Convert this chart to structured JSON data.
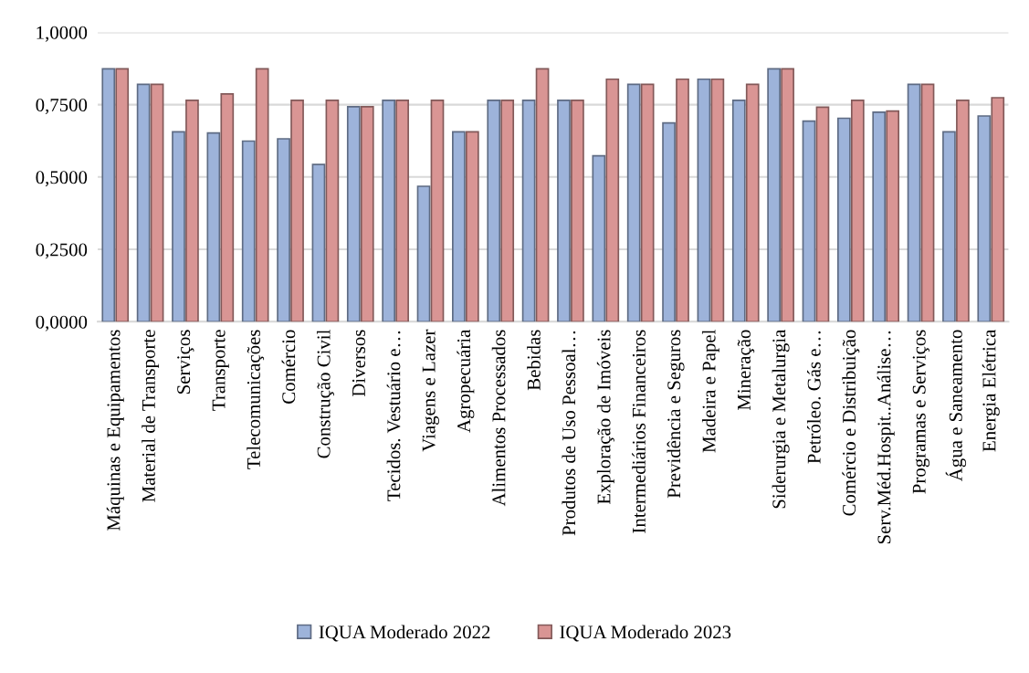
{
  "chart_data": {
    "type": "bar",
    "categories": [
      "Máquinas e Equipamentos",
      "Material de Transporte",
      "Serviços",
      "Transporte",
      "Telecomunicações",
      "Comércio",
      "Construção Civil",
      "Diversos",
      "Tecidos. Vestuário e…",
      "Viagens e Lazer",
      "Agropecuária",
      "Alimentos Processados",
      "Bebidas",
      "Produtos de Uso Pessoal…",
      "Exploração de Imóveis",
      "Intermediários Financeiros",
      "Previdência e Seguros",
      "Madeira e Papel",
      "Mineração",
      "Siderurgia e Metalurgia",
      "Petróleo. Gás e…",
      "Comércio e Distribuição",
      "Serv.Méd.Hospit..Análise…",
      "Programas e Serviços",
      "Água e Saneamento",
      "Energia Elétrica"
    ],
    "series": [
      {
        "name": "IQUA Moderado 2022",
        "color": "#9db3da",
        "values": [
          0.874,
          0.82,
          0.656,
          0.652,
          0.624,
          0.632,
          0.543,
          0.743,
          0.765,
          0.468,
          0.656,
          0.765,
          0.765,
          0.765,
          0.573,
          0.82,
          0.687,
          0.838,
          0.765,
          0.874,
          0.693,
          0.703,
          0.724,
          0.82,
          0.656,
          0.711
        ]
      },
      {
        "name": "IQUA Moderado 2023",
        "color": "#d99594",
        "values": [
          0.874,
          0.82,
          0.765,
          0.787,
          0.874,
          0.765,
          0.765,
          0.743,
          0.765,
          0.765,
          0.656,
          0.765,
          0.874,
          0.765,
          0.838,
          0.82,
          0.838,
          0.838,
          0.82,
          0.874,
          0.741,
          0.765,
          0.728,
          0.82,
          0.765,
          0.774
        ]
      }
    ],
    "ylim": [
      0,
      1
    ],
    "yticks": [
      {
        "value": 0,
        "label": "0,0000"
      },
      {
        "value": 0.25,
        "label": "0,2500"
      },
      {
        "value": 0.5,
        "label": "0,5000"
      },
      {
        "value": 0.75,
        "label": "0,7500"
      },
      {
        "value": 1,
        "label": "1,0000"
      }
    ],
    "grid": "y",
    "legend": "bottom"
  }
}
